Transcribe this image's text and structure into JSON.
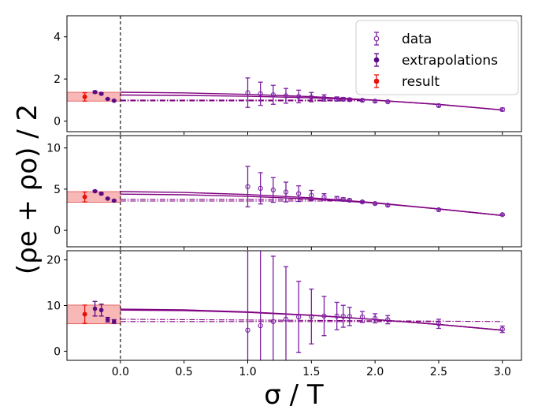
{
  "chart_data": {
    "type": "scatter",
    "xlabel": "σ / T",
    "ylabel": "(ρe + ρo) / 2",
    "xlim": [
      -0.42,
      3.15
    ],
    "xticks": [
      "0.0",
      "0.5",
      "1.0",
      "1.5",
      "2.0",
      "2.5",
      "3.0"
    ],
    "xtick_values": [
      0.0,
      0.5,
      1.0,
      1.5,
      2.0,
      2.5,
      3.0
    ],
    "colors": {
      "data": "#7b1fa2",
      "extrapolations": "#5a0a82",
      "result": "#e8120c",
      "band": "#f5a0a0",
      "fit": "#800080"
    },
    "legend": {
      "location": "top-right",
      "entries": [
        "data",
        "extrapolations",
        "result"
      ]
    },
    "panels": [
      {
        "name": "top",
        "ylim": [
          -0.5,
          5.0
        ],
        "yticks": [
          "0",
          "2",
          "4"
        ],
        "ytick_values": [
          0,
          2,
          4
        ],
        "data": {
          "x": [
            1.0,
            1.1,
            1.2,
            1.3,
            1.4,
            1.5,
            1.6,
            1.7,
            1.75,
            1.8,
            1.9,
            2.0,
            2.1,
            2.5,
            3.0
          ],
          "y": [
            1.35,
            1.3,
            1.25,
            1.2,
            1.17,
            1.14,
            1.1,
            1.05,
            1.04,
            1.02,
            0.99,
            0.95,
            0.92,
            0.74,
            0.55
          ],
          "err": [
            0.7,
            0.55,
            0.45,
            0.35,
            0.3,
            0.22,
            0.15,
            0.1,
            0.08,
            0.07,
            0.05,
            0.04,
            0.04,
            0.05,
            0.07
          ]
        },
        "extrapolations": {
          "x": [
            -0.2,
            -0.15,
            -0.1,
            -0.05
          ],
          "y": [
            1.38,
            1.3,
            1.05,
            0.97
          ],
          "err": [
            0.05,
            0.04,
            0.03,
            0.03
          ]
        },
        "result": {
          "x": -0.28,
          "y": 1.15,
          "err": 0.2,
          "band": [
            0.95,
            1.37
          ]
        },
        "fits": [
          {
            "style": "solid",
            "x": [
              0,
              0.5,
              1.0,
              1.5,
              2.0,
              2.5,
              3.0
            ],
            "y": [
              1.37,
              1.34,
              1.27,
              1.16,
              1.0,
              0.79,
              0.53
            ]
          },
          {
            "style": "solid",
            "x": [
              0,
              0.5,
              1.0,
              1.5,
              2.0,
              2.5,
              3.0
            ],
            "y": [
              1.24,
              1.22,
              1.18,
              1.11,
              0.99,
              0.8,
              0.53
            ]
          },
          {
            "style": "dashdot",
            "x": [
              0,
              1.9
            ],
            "y": [
              1.0,
              1.0
            ]
          },
          {
            "style": "dashdot",
            "x": [
              0,
              1.9
            ],
            "y": [
              0.96,
              0.96
            ]
          }
        ]
      },
      {
        "name": "middle",
        "ylim": [
          -2.0,
          11.5
        ],
        "yticks": [
          "0",
          "5",
          "10"
        ],
        "ytick_values": [
          0,
          5,
          10
        ],
        "data": {
          "x": [
            1.0,
            1.1,
            1.2,
            1.3,
            1.4,
            1.5,
            1.6,
            1.7,
            1.75,
            1.8,
            1.9,
            2.0,
            2.1,
            2.5,
            3.0
          ],
          "y": [
            5.3,
            5.1,
            4.9,
            4.65,
            4.45,
            4.25,
            4.05,
            3.85,
            3.75,
            3.65,
            3.45,
            3.25,
            3.05,
            2.5,
            1.9
          ],
          "err": [
            2.45,
            1.9,
            1.5,
            1.2,
            0.95,
            0.6,
            0.4,
            0.25,
            0.2,
            0.15,
            0.12,
            0.1,
            0.1,
            0.1,
            0.1
          ]
        },
        "extrapolations": {
          "x": [
            -0.2,
            -0.15,
            -0.1,
            -0.05
          ],
          "y": [
            4.75,
            4.45,
            3.85,
            3.6
          ],
          "err": [
            0.1,
            0.1,
            0.08,
            0.08
          ]
        },
        "result": {
          "x": -0.28,
          "y": 4.05,
          "err": 0.6,
          "band": [
            3.4,
            4.7
          ]
        },
        "fits": [
          {
            "style": "solid",
            "x": [
              0,
              0.5,
              1.0,
              1.5,
              2.0,
              2.5,
              3.0
            ],
            "y": [
              4.7,
              4.6,
              4.35,
              3.95,
              3.35,
              2.6,
              1.8
            ]
          },
          {
            "style": "solid",
            "x": [
              0,
              0.5,
              1.0,
              1.5,
              2.0,
              2.5,
              3.0
            ],
            "y": [
              4.4,
              4.32,
              4.12,
              3.8,
              3.3,
              2.6,
              1.8
            ]
          },
          {
            "style": "dashdot",
            "x": [
              0,
              1.8
            ],
            "y": [
              3.75,
              3.75
            ]
          },
          {
            "style": "dashdot",
            "x": [
              0,
              1.8
            ],
            "y": [
              3.55,
              3.55
            ]
          }
        ]
      },
      {
        "name": "bottom",
        "ylim": [
          -2.0,
          22.0
        ],
        "yticks": [
          "0",
          "10",
          "20"
        ],
        "ytick_values": [
          0,
          10,
          20
        ],
        "data": {
          "x": [
            1.0,
            1.1,
            1.2,
            1.3,
            1.4,
            1.5,
            1.6,
            1.7,
            1.75,
            1.8,
            1.9,
            2.0,
            2.1,
            2.5,
            3.0
          ],
          "y": [
            4.6,
            5.6,
            6.5,
            7.0,
            7.5,
            7.6,
            7.7,
            7.7,
            7.65,
            7.6,
            7.5,
            7.2,
            6.9,
            6.0,
            4.8
          ],
          "err": [
            20,
            17,
            14.3,
            11.5,
            7.8,
            6.0,
            4.3,
            3.0,
            2.4,
            2.0,
            1.2,
            1.0,
            0.9,
            1.0,
            0.7
          ]
        },
        "extrapolations": {
          "x": [
            -0.2,
            -0.15,
            -0.1,
            -0.05
          ],
          "y": [
            9.3,
            9.0,
            6.9,
            6.5
          ],
          "err": [
            1.6,
            1.3,
            0.5,
            0.4
          ]
        },
        "result": {
          "x": -0.28,
          "y": 8.1,
          "err": 2.0,
          "band": [
            6.0,
            10.1
          ]
        },
        "fits": [
          {
            "style": "solid",
            "x": [
              0,
              0.5,
              1.0,
              1.5,
              2.0,
              2.5,
              3.0
            ],
            "y": [
              9.2,
              9.05,
              8.6,
              7.9,
              6.95,
              5.85,
              4.6
            ]
          },
          {
            "style": "solid",
            "x": [
              0,
              0.5,
              1.0,
              1.5,
              2.0,
              2.5,
              3.0
            ],
            "y": [
              9.0,
              8.9,
              8.5,
              7.85,
              6.95,
              5.85,
              4.6
            ]
          },
          {
            "style": "dashdot",
            "x": [
              0,
              3.0
            ],
            "y": [
              7.0,
              6.5
            ]
          },
          {
            "style": "dashdot",
            "x": [
              0,
              2.5
            ],
            "y": [
              6.5,
              6.5
            ]
          }
        ]
      }
    ]
  }
}
